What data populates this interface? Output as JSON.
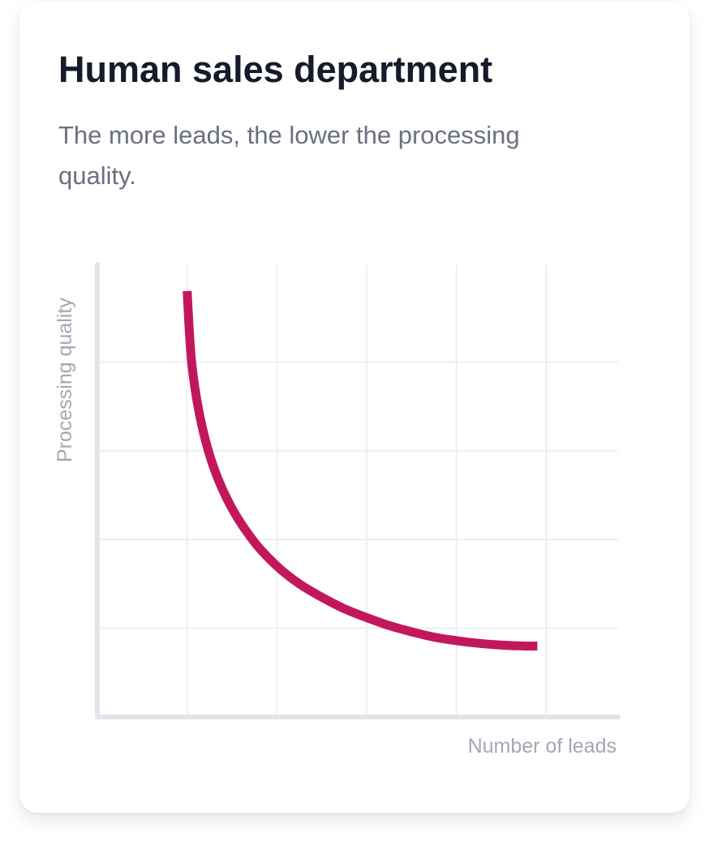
{
  "card": {
    "title": "Human sales department",
    "subtitle": "The more leads, the lower the processing quality."
  },
  "chart_data": {
    "type": "line",
    "title": "",
    "xlabel": "Number of leads",
    "ylabel": "Processing quality",
    "grid": true,
    "legend": "none",
    "xlim": [
      0,
      5.8
    ],
    "ylim": [
      0,
      5.1
    ],
    "series": [
      {
        "color": "#c2185b",
        "x": [
          1.0,
          1.05,
          1.15,
          1.3,
          1.5,
          1.75,
          2.0,
          2.25,
          2.5,
          2.75,
          3.0,
          3.25,
          3.5,
          3.75,
          4.0,
          4.25,
          4.5,
          4.75,
          4.9
        ],
        "y": [
          4.8,
          4.0,
          3.35,
          2.8,
          2.35,
          1.97,
          1.7,
          1.5,
          1.35,
          1.22,
          1.12,
          1.03,
          0.96,
          0.9,
          0.86,
          0.83,
          0.81,
          0.8,
          0.8
        ]
      }
    ]
  }
}
